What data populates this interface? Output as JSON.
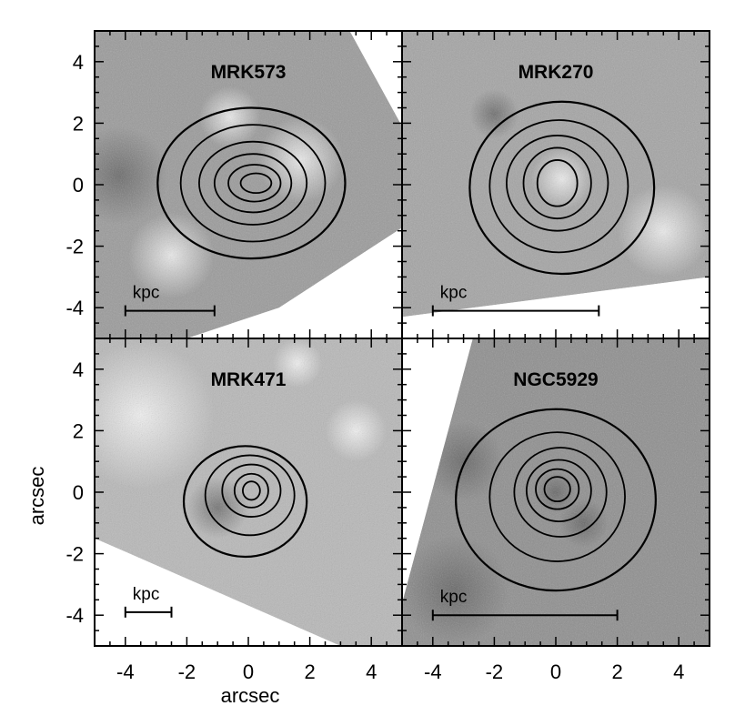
{
  "figure": {
    "xlabel": "arcsec",
    "ylabel": "arcsec"
  },
  "chart_data": [
    {
      "type": "contour",
      "title": "MRK573",
      "xlim": [
        -5,
        5
      ],
      "ylim": [
        -5,
        5
      ],
      "xticks": [
        "-4",
        "-2",
        "0",
        "2",
        "4"
      ],
      "yticks": [
        "-4",
        "-2",
        "0",
        "2",
        "4"
      ],
      "scale_bar": {
        "label": "kpc",
        "x": [
          -4,
          -1.1
        ],
        "y": -4.1
      },
      "field_coverage": [
        [
          -5,
          5
        ],
        [
          3.3,
          5
        ],
        [
          5,
          1.9
        ],
        [
          5,
          -1.4
        ],
        [
          1.0,
          -4.0
        ],
        [
          -2.0,
          -5
        ],
        [
          -5,
          -5
        ]
      ],
      "contours": [
        {
          "cx": 0.1,
          "cy": 0.05,
          "rx": 3.05,
          "ry": 2.45
        },
        {
          "cx": 0.15,
          "cy": 0.05,
          "rx": 2.35,
          "ry": 1.9
        },
        {
          "cx": 0.15,
          "cy": 0.05,
          "rx": 1.75,
          "ry": 1.35
        },
        {
          "cx": 0.15,
          "cy": 0.05,
          "rx": 1.25,
          "ry": 0.95
        },
        {
          "cx": 0.2,
          "cy": 0.05,
          "rx": 0.85,
          "ry": 0.6
        },
        {
          "cx": 0.25,
          "cy": 0.05,
          "rx": 0.5,
          "ry": 0.32
        }
      ]
    },
    {
      "type": "contour",
      "title": "MRK270",
      "xlim": [
        -5,
        5
      ],
      "ylim": [
        -5,
        5
      ],
      "xticks": [
        "-4",
        "-2",
        "0",
        "2",
        "4"
      ],
      "yticks": [
        "-4",
        "-2",
        "0",
        "2",
        "4"
      ],
      "scale_bar": {
        "label": "kpc",
        "x": [
          -4,
          1.4
        ],
        "y": -4.1
      },
      "field_coverage": [
        [
          -5,
          5
        ],
        [
          5,
          5
        ],
        [
          5,
          -3.0
        ],
        [
          -5,
          -4.3
        ]
      ],
      "contours": [
        {
          "cx": 0.2,
          "cy": -0.1,
          "rx": 3.0,
          "ry": 2.8
        },
        {
          "cx": 0.1,
          "cy": -0.05,
          "rx": 2.25,
          "ry": 2.15
        },
        {
          "cx": 0.05,
          "cy": 0.05,
          "rx": 1.65,
          "ry": 1.55
        },
        {
          "cx": 0.05,
          "cy": 0.05,
          "rx": 1.1,
          "ry": 1.15
        },
        {
          "cx": 0.05,
          "cy": 0.05,
          "rx": 0.65,
          "ry": 0.75
        }
      ]
    },
    {
      "type": "contour",
      "title": "MRK471",
      "xlim": [
        -5,
        5
      ],
      "ylim": [
        -5,
        5
      ],
      "xticks": [
        "-4",
        "-2",
        "0",
        "2",
        "4"
      ],
      "yticks": [
        "-4",
        "-2",
        "0",
        "2",
        "4"
      ],
      "scale_bar": {
        "label": "kpc",
        "x": [
          -4,
          -2.5
        ],
        "y": -3.9
      },
      "field_coverage": [
        [
          -5,
          5
        ],
        [
          5,
          5
        ],
        [
          5,
          -5
        ],
        [
          3.0,
          -5
        ],
        [
          -5,
          -1.5
        ]
      ],
      "contours": [
        {
          "cx": -0.1,
          "cy": -0.3,
          "rx": 2.0,
          "ry": 1.8
        },
        {
          "cx": 0.05,
          "cy": -0.1,
          "rx": 1.45,
          "ry": 1.3
        },
        {
          "cx": 0.1,
          "cy": 0.05,
          "rx": 0.95,
          "ry": 0.85
        },
        {
          "cx": 0.1,
          "cy": 0.05,
          "rx": 0.55,
          "ry": 0.55
        },
        {
          "cx": 0.1,
          "cy": 0.05,
          "rx": 0.28,
          "ry": 0.3
        }
      ]
    },
    {
      "type": "contour",
      "title": "NGC5929",
      "xlim": [
        -5,
        5
      ],
      "ylim": [
        -5,
        5
      ],
      "xticks": [
        "-4",
        "-2",
        "0",
        "2",
        "4"
      ],
      "yticks": [
        "-4",
        "-2",
        "0",
        "2",
        "4"
      ],
      "scale_bar": {
        "label": "kpc",
        "x": [
          -4,
          2.0
        ],
        "y": -4.0
      },
      "field_coverage": [
        [
          -2.7,
          5
        ],
        [
          5,
          5
        ],
        [
          5,
          -5
        ],
        [
          -5,
          -5
        ],
        [
          -5,
          -3.6
        ]
      ],
      "contours": [
        {
          "cx": 0.0,
          "cy": -0.25,
          "rx": 3.25,
          "ry": 2.95
        },
        {
          "cx": 0.05,
          "cy": -0.15,
          "rx": 2.2,
          "ry": 2.1
        },
        {
          "cx": 0.15,
          "cy": 0.0,
          "rx": 1.5,
          "ry": 1.45
        },
        {
          "cx": 0.1,
          "cy": 0.05,
          "rx": 1.05,
          "ry": 1.0
        },
        {
          "cx": 0.05,
          "cy": 0.1,
          "rx": 0.7,
          "ry": 0.65
        },
        {
          "cx": 0.05,
          "cy": 0.1,
          "rx": 0.42,
          "ry": 0.4
        }
      ]
    }
  ]
}
